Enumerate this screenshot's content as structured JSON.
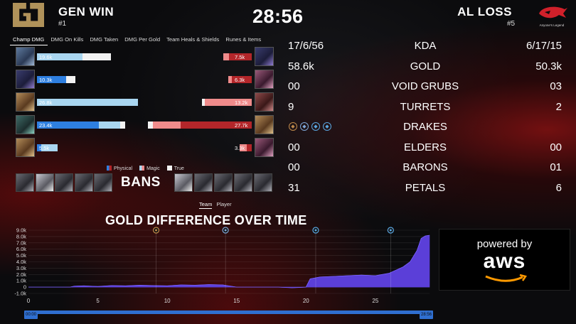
{
  "header": {
    "left_team": {
      "name": "GEN WIN",
      "rank": "#1"
    },
    "timer": "28:56",
    "right_team": {
      "name": "AL LOSS",
      "rank": "#5",
      "logo_caption": "Anyone's Legend"
    }
  },
  "tabs": [
    {
      "label": "Champ DMG",
      "active": true
    },
    {
      "label": "DMG On Kills"
    },
    {
      "label": "DMG Taken"
    },
    {
      "label": "DMG Per Gold"
    },
    {
      "label": "Team Heals & Shields"
    },
    {
      "label": "Runes & Items"
    }
  ],
  "damage": {
    "left": [
      {
        "portrait": "p-blue",
        "value": "19.6k",
        "phys": 0.0,
        "mag": 0.62,
        "true": 0.38,
        "total": 19.6
      },
      {
        "portrait": "p-pur",
        "value": "10.3k",
        "phys": 0.75,
        "mag": 0.0,
        "true": 0.25,
        "total": 10.3
      },
      {
        "portrait": "p-gold",
        "value": "26.8k",
        "phys": 0.0,
        "mag": 1.0,
        "true": 0.0,
        "total": 26.8
      },
      {
        "portrait": "p-teal",
        "value": "23.4k",
        "phys": 0.7,
        "mag": 0.25,
        "true": 0.05,
        "total": 23.4
      },
      {
        "portrait": "p-gold",
        "value": "5.5k",
        "phys": 0.2,
        "mag": 0.8,
        "true": 0.0,
        "total": 5.5
      }
    ],
    "right": [
      {
        "portrait": "p-pur",
        "value": "7.5k",
        "phys": 0.8,
        "mag": 0.2,
        "true": 0.0,
        "total": 7.5
      },
      {
        "portrait": "p-pink",
        "value": "6.3k",
        "phys": 0.85,
        "mag": 0.15,
        "true": 0.0,
        "total": 6.3
      },
      {
        "portrait": "p-red",
        "value": "13.2k",
        "phys": 0.0,
        "mag": 0.95,
        "true": 0.05,
        "total": 13.2
      },
      {
        "portrait": "p-gold",
        "value": "27.7k",
        "phys": 0.68,
        "mag": 0.27,
        "true": 0.05,
        "total": 27.7
      },
      {
        "portrait": "p-pink",
        "value": "3.3k",
        "phys": 0.4,
        "mag": 0.6,
        "true": 0.0,
        "total": 3.3
      }
    ],
    "max_total": 28,
    "legend": {
      "physical": "Physical",
      "magic": "Magic",
      "true": "True"
    }
  },
  "bans": {
    "label": "BANS",
    "left": [
      "p-grey",
      "p-white",
      "p-grey",
      "p-grey",
      "p-grey"
    ],
    "right": [
      "p-white",
      "p-grey",
      "p-grey",
      "p-grey",
      "p-grey"
    ]
  },
  "stats": [
    {
      "left": "17/6/56",
      "label": "KDA",
      "right": "6/17/15"
    },
    {
      "left": "58.6k",
      "label": "GOLD",
      "right": "50.3k"
    },
    {
      "left": "00",
      "label": "VOID GRUBS",
      "right": "03"
    },
    {
      "left": "9",
      "label": "TURRETS",
      "right": "2"
    },
    {
      "left": "",
      "label": "DRAKES",
      "right": ""
    },
    {
      "left": "00",
      "label": "ELDERS",
      "right": "00"
    },
    {
      "left": "00",
      "label": "BARONS",
      "right": "01"
    },
    {
      "left": "31",
      "label": "PETALS",
      "right": "6"
    }
  ],
  "drakes_left": [
    {
      "icon": "infernal-drake-icon",
      "color": "#c08a4a"
    },
    {
      "icon": "cloud-drake-icon",
      "color": "#7fa7d8"
    },
    {
      "icon": "ocean-drake-icon",
      "color": "#5aa6e0"
    },
    {
      "icon": "ocean-drake-icon",
      "color": "#5aa6e0"
    }
  ],
  "chart_toggle": {
    "team": "Team",
    "player": "Player",
    "active": "team"
  },
  "sponsor": {
    "powered": "powered by",
    "brand": "aws"
  },
  "chart_data": {
    "type": "area",
    "title": "GOLD DIFFERENCE OVER TIME",
    "xlabel": "",
    "ylabel": "",
    "xlim": [
      0,
      28.9
    ],
    "ylim": [
      -1000,
      9000
    ],
    "yticks": [
      -1000,
      0,
      1000,
      2000,
      3000,
      4000,
      5000,
      6000,
      7000,
      8000,
      9000
    ],
    "ytick_labels": [
      "-1.0k",
      "0",
      "1.0k",
      "2.0k",
      "3.0k",
      "4.0k",
      "5.0k",
      "6.0k",
      "7.0k",
      "8.0k",
      "9.0k"
    ],
    "xticks": [
      0,
      5,
      10,
      15,
      20,
      25
    ],
    "color": "#5b3fd8",
    "x": [
      0,
      2,
      3,
      3.3,
      4,
      5,
      6,
      7,
      8,
      9,
      10,
      11,
      12,
      13,
      14,
      15,
      16,
      17,
      18,
      19,
      19.5,
      20,
      20.3,
      21,
      22,
      23,
      24,
      25,
      26,
      26.5,
      27,
      27.5,
      28,
      28.3,
      28.6,
      28.9
    ],
    "y": [
      0,
      0,
      0,
      150,
      200,
      100,
      250,
      200,
      300,
      250,
      200,
      350,
      300,
      400,
      350,
      0,
      0,
      0,
      0,
      -100,
      -50,
      0,
      1300,
      1600,
      1700,
      1800,
      1900,
      1800,
      2200,
      2700,
      3200,
      4000,
      5800,
      7700,
      8100,
      8200
    ],
    "events": [
      {
        "x": 9.2,
        "icon": "infernal-drake-icon",
        "color": "#c08a4a"
      },
      {
        "x": 14.2,
        "icon": "cloud-drake-icon",
        "color": "#7fa7d8"
      },
      {
        "x": 20.7,
        "icon": "ocean-drake-icon",
        "color": "#5aa6e0"
      },
      {
        "x": 26.1,
        "icon": "ocean-drake-icon",
        "color": "#5aa6e0"
      }
    ]
  },
  "slider": {
    "start": "00:00",
    "end": "28:56"
  }
}
